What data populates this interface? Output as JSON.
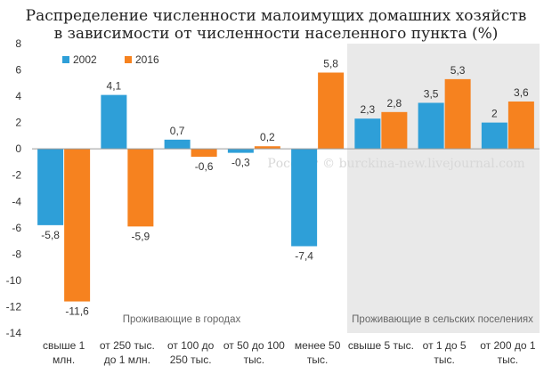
{
  "chart_data": {
    "type": "bar",
    "title_lines": [
      "Распределение численности малоимущих домашних хозяйств",
      "в зависимости от численности населенного пункта (%)"
    ],
    "categories": [
      [
        "свыше 1",
        "млн."
      ],
      [
        "от 250 тыс.",
        "до 1 млн."
      ],
      [
        "от 100 до",
        "250 тыс."
      ],
      [
        "от 50 до 100",
        "тыс."
      ],
      [
        "менее 50",
        "тыс."
      ],
      [
        "свыше 5 тыс."
      ],
      [
        "от 1 до 5",
        "тыс."
      ],
      [
        "от 200 до 1",
        "тыс."
      ]
    ],
    "series": [
      {
        "name": "2002",
        "color": "#2e9fd8",
        "values": [
          -5.8,
          4.1,
          0.7,
          -0.3,
          -7.4,
          2.3,
          3.5,
          2
        ],
        "labels": [
          "-5,8",
          "4,1",
          "0,7",
          "-0,3",
          "-7,4",
          "2,3",
          "3,5",
          "2"
        ]
      },
      {
        "name": "2016",
        "color": "#f6821f",
        "values": [
          -11.6,
          -5.9,
          -0.6,
          0.2,
          5.8,
          2.8,
          5.3,
          3.6
        ],
        "labels": [
          "-11,6",
          "-5,9",
          "-0,6",
          "0,2",
          "5,8",
          "2,8",
          "5,3",
          "3,6"
        ]
      }
    ],
    "ylim": [
      -14,
      8
    ],
    "yticks": [
      8,
      6,
      4,
      2,
      0,
      -2,
      -4,
      -6,
      -8,
      -10,
      -12,
      -14
    ],
    "regions": [
      {
        "label": "Проживающие в городах",
        "from": 0,
        "to": 4,
        "shaded": false
      },
      {
        "label": "Проживающие  в сельских поселениях",
        "from": 5,
        "to": 7,
        "shaded": true
      }
    ],
    "watermark": "Росстат © burckina-new.livejournal.com",
    "legend_position": "top-left",
    "grid": false
  }
}
